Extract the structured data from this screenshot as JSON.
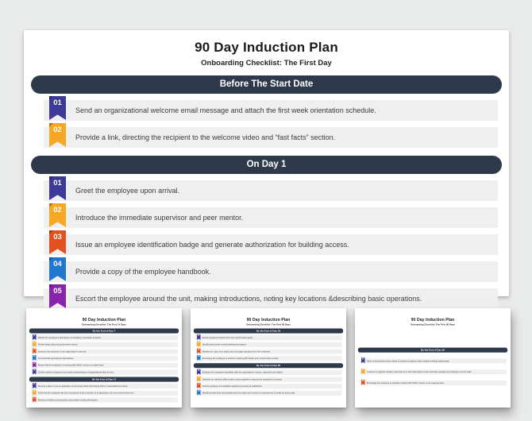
{
  "colors": {
    "page_background": "#E9EAEA",
    "slide_background": "#FFFFFF",
    "section_header_bg": "#2E3A4C",
    "section_header_text": "#FFFFFF",
    "row_bg": "#EFEFEF",
    "item_text": "#3D3D3D",
    "title_text": "#1B1B1B",
    "ribbon_cycle": [
      "#3D3A99",
      "#F6A724",
      "#E2511F",
      "#2177CE",
      "#8824AC"
    ]
  },
  "main_slide": {
    "title": "90 Day Induction Plan",
    "subtitle": "Onboarding Checklist: The First Day",
    "sections": [
      {
        "header": "Before The Start Date",
        "items": [
          {
            "num": "01",
            "text": "Send an organizational welcome email message and attach the first week orientation schedule."
          },
          {
            "num": "02",
            "text": "Provide a link, directing the recipient to the welcome video and “fast facts” section."
          }
        ]
      },
      {
        "header": "On Day 1",
        "items": [
          {
            "num": "01",
            "text": "Greet the employee upon arrival."
          },
          {
            "num": "02",
            "text": "Introduce the immediate supervisor and peer mentor."
          },
          {
            "num": "03",
            "text": "Issue an employee identification badge and generate authorization for building access."
          },
          {
            "num": "04",
            "text": "Provide a copy of the employee handbook."
          },
          {
            "num": "05",
            "text": "Escort the employee around the unit, making introductions, noting key locations &describing basic operations."
          }
        ]
      }
    ]
  },
  "thumbnails": [
    {
      "title": "90 Day Induction Plan",
      "subtitle": "Onboarding Checklist: The First 14 Days",
      "sections": [
        {
          "header": "By the End of Day 7",
          "items": [
            {
              "num": "01",
              "text": "Monitor the employee's attendance at mandatory orientation sessions."
            },
            {
              "num": "02",
              "text": "Review basic policy and governance issues."
            },
            {
              "num": "03",
              "text": "Introduce the employee to the organization's web site."
            },
            {
              "num": "04",
              "text": "Communicate general job expectations."
            },
            {
              "num": "05",
              "text": "Ensure that the employee is meeting with his/her mentor on a daily basis."
            },
            {
              "num": "06",
              "text": "Confirm that the employee has a basic understanding of organizational facts & rules."
            }
          ]
        },
        {
          "header": "By the End of Day 14",
          "items": [
            {
              "num": "01",
              "text": "Develop a plan to ensure acquisition of necessary skills and training within a reasonable time frame."
            },
            {
              "num": "02",
              "text": "Verify that the employee has been introduced to all co-workers & is adjusting to the new work environment."
            },
            {
              "num": "03",
              "text": "Reinforce healthy communication and problem solving techniques."
            }
          ]
        }
      ]
    },
    {
      "title": "90 Day Induction Plan",
      "subtitle": "Onboarding Checklist: The First 60 Days",
      "sections": [
        {
          "header": "By the End of Day 30",
          "items": [
            {
              "num": "01",
              "text": "Review progress towards short-term performance goals."
            },
            {
              "num": "02",
              "text": "Identify and provide needed training and support."
            },
            {
              "num": "03",
              "text": "Maintain an 'open door' policy and encourage questions from the employee."
            },
            {
              "num": "04",
              "text": "Encourage the employee to continue meeting with his/her peer mentor twice a week."
            }
          ]
        },
        {
          "header": "By the End of Day 60",
          "items": [
            {
              "num": "01",
              "text": "Evaluate the employee's familiarity with the organization's mission, objectives and values."
            },
            {
              "num": "02",
              "text": "Schedule an informal coffee break or lunch together to discuss the employee's concerns."
            },
            {
              "num": "03",
              "text": "Ask the employee for feedback regarding personal job satisfaction."
            },
            {
              "num": "04",
              "text": "Identify at least three accomplishments for praise and 3 areas for improvement & create an action plan."
            }
          ]
        }
      ]
    },
    {
      "title": "90 Day Induction Plan",
      "subtitle": "Onboarding Checklist: The First 90 Days",
      "sparse": true,
      "sections": [
        {
          "header": "By the End of Day 90",
          "items": [
            {
              "num": "01",
              "text": "Hold a formal performance review to examine progress made towards meeting stated goals."
            },
            {
              "num": "02",
              "text": "Continue to organize lunches, discussions & other information events that help integrate the employee into the team."
            },
            {
              "num": "03",
              "text": "Encourage the employee to maintain contact with his/her mentor on an ongoing basis."
            }
          ]
        }
      ]
    }
  ]
}
